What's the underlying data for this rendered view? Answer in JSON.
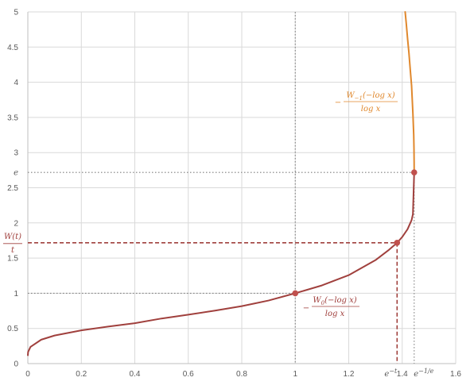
{
  "chart_data": {
    "type": "line",
    "title": "",
    "xlabel": "",
    "ylabel": "",
    "xlim": [
      0,
      1.6
    ],
    "ylim": [
      0,
      5
    ],
    "grid": true,
    "x_ticks": [
      "0",
      "0.2",
      "0.4",
      "0.6",
      "0.8",
      "1",
      "1.2",
      "1.4",
      "1.6"
    ],
    "y_ticks": [
      "0",
      "0.5",
      "1",
      "1.5",
      "2",
      "2.5",
      "3",
      "3.5",
      "4",
      "4.5",
      "5"
    ],
    "special_ticks": {
      "x_e_minus_t": {
        "label": "e",
        "sup": "−t",
        "value": 1.3808
      },
      "x_e_minus_1_over_e": {
        "label": "e",
        "sup": "−1/e",
        "value": 1.4447
      },
      "y_e": {
        "label": "e",
        "value": 2.7183
      },
      "y_wt_over_t": {
        "numerator": "W(t)",
        "denominator": "t",
        "value": 1.7179
      }
    },
    "series": [
      {
        "label_num_pre": "W",
        "label_num_sub": "0",
        "label_num_post": "(−log x)",
        "label_prefix": "−",
        "label_den": "log x",
        "color": "#a0403d",
        "x": [
          0.0001,
          0.001,
          0.01,
          0.05,
          0.1,
          0.2,
          0.3,
          0.4,
          0.5,
          0.6,
          0.7,
          0.8,
          0.9,
          1.0,
          1.1,
          1.2,
          1.3,
          1.35,
          1.38,
          1.4,
          1.42,
          1.435,
          1.44,
          1.4447
        ],
        "y": [
          0.1185,
          0.1652,
          0.2373,
          0.3398,
          0.3993,
          0.4727,
          0.5267,
          0.5743,
          0.6411,
          0.6961,
          0.7533,
          0.8171,
          0.8964,
          1.0,
          1.1118,
          1.2571,
          1.4711,
          1.6163,
          1.7142,
          1.8,
          1.911,
          2.039,
          2.125,
          2.7183
        ]
      },
      {
        "label_num_pre": "W",
        "label_num_sub": "−1",
        "label_num_post": "(−log x)",
        "label_prefix": "−",
        "label_den": "log x",
        "color": "#e0882d",
        "x": [
          1.4447,
          1.4445,
          1.444,
          1.443,
          1.44,
          1.435,
          1.43,
          1.425,
          1.42,
          1.415,
          1.411
        ],
        "y": [
          2.7183,
          2.87,
          3.05,
          3.25,
          3.55,
          3.95,
          4.18,
          4.42,
          4.62,
          4.84,
          5.0
        ]
      }
    ],
    "points": [
      {
        "x": 1.0,
        "y": 1.0
      },
      {
        "x": 1.3808,
        "y": 1.7179
      },
      {
        "x": 1.4447,
        "y": 2.7183
      }
    ]
  }
}
